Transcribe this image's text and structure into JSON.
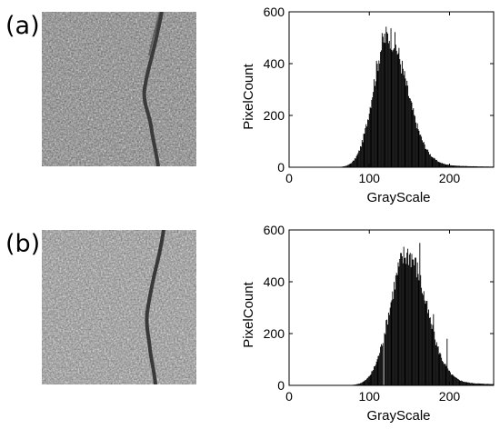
{
  "panels": [
    {
      "label": "(a)"
    },
    {
      "label": "(b)"
    }
  ],
  "chart_data": [
    {
      "type": "bar",
      "panel": "(a)",
      "xlabel": "GrayScale",
      "ylabel": "PixelCount",
      "xlim": [
        0,
        255
      ],
      "ylim": [
        0,
        600
      ],
      "xticks": [
        0,
        100,
        200
      ],
      "yticks": [
        0,
        200,
        400,
        600
      ],
      "bar_color": "#000000",
      "shape": {
        "center": 122,
        "peak": 505,
        "sigma_left": 17,
        "sigma_right": 24,
        "tail_amp": 25,
        "tail_decay": 55
      },
      "spikes": []
    },
    {
      "type": "bar",
      "panel": "(b)",
      "xlabel": "GrayScale",
      "ylabel": "PixelCount",
      "xlim": [
        0,
        255
      ],
      "ylim": [
        0,
        600
      ],
      "xticks": [
        0,
        100,
        200
      ],
      "yticks": [
        0,
        200,
        400,
        600
      ],
      "bar_color": "#000000",
      "shape": {
        "center": 146,
        "peak": 505,
        "sigma_left": 20,
        "sigma_right": 24,
        "tail_amp": 30,
        "tail_decay": 60
      },
      "spikes": [
        {
          "x": 163,
          "value": 550
        },
        {
          "x": 180,
          "value": 275
        },
        {
          "x": 197,
          "value": 180
        }
      ]
    }
  ]
}
